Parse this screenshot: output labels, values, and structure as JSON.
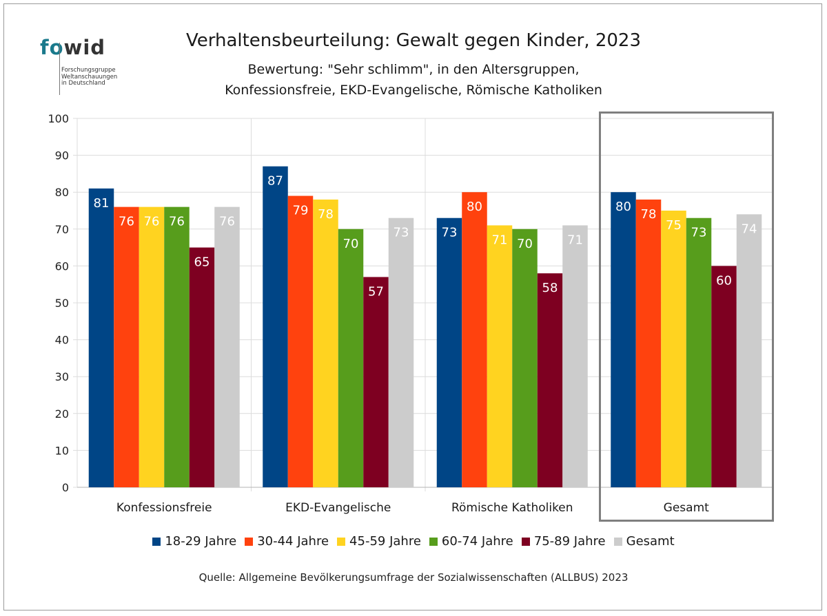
{
  "logo": {
    "mark_light": "fo",
    "mark_dark": "wid",
    "subtitle": "Forschungsgruppe\nWeltanschauungen\nin Deutschland"
  },
  "title": "Verhaltensbeurteilung: Gewalt gegen Kinder, 2023",
  "subtitle_line1": "Bewertung: \"Sehr schlimm\", in den Altersgruppen,",
  "subtitle_line2": "Konfessionsfreie, EKD-Evangelische, Römische Katholiken",
  "source": "Quelle: Allgemeine Bevölkerungsumfrage der Sozialwissenschaften (ALLBUS) 2023",
  "chart_data": {
    "type": "bar",
    "categories": [
      "Konfessionsfreie",
      "EKD-Evangelische",
      "Römische Katholiken",
      "Gesamt"
    ],
    "series": [
      {
        "name": "18-29 Jahre",
        "color": "#004586",
        "values": [
          81,
          87,
          73,
          80
        ]
      },
      {
        "name": "30-44 Jahre",
        "color": "#ff420e",
        "values": [
          76,
          79,
          80,
          78
        ]
      },
      {
        "name": "45-59 Jahre",
        "color": "#ffd320",
        "values": [
          76,
          78,
          71,
          75
        ]
      },
      {
        "name": "60-74 Jahre",
        "color": "#579d1c",
        "values": [
          76,
          70,
          70,
          73
        ]
      },
      {
        "name": "75-89 Jahre",
        "color": "#7e0021",
        "values": [
          65,
          57,
          58,
          60
        ]
      },
      {
        "name": "Gesamt",
        "color": "#cccccc",
        "values": [
          76,
          73,
          71,
          74
        ]
      }
    ],
    "ylim": [
      0,
      100
    ],
    "yticks": [
      0,
      10,
      20,
      30,
      40,
      50,
      60,
      70,
      80,
      90,
      100
    ],
    "grid": true,
    "legend": "bottom",
    "highlight_category": "Gesamt"
  }
}
